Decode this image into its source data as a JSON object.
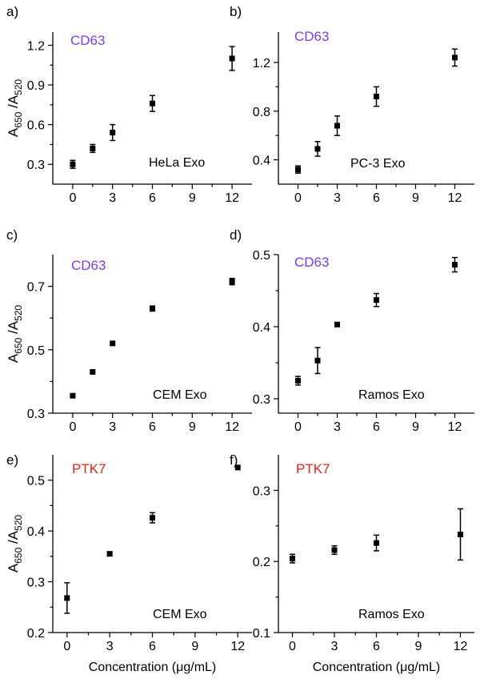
{
  "figure": {
    "ylabel_main": "A",
    "ylabel_sub1": "650",
    "ylabel_sep": " /A",
    "ylabel_sub2": "520",
    "xlabel": "Concentration (μg/mL)"
  },
  "chart_data": [
    {
      "panel": "a)",
      "type": "scatter",
      "marker": "CD63",
      "marker_color": "#7b3fe4",
      "sample": "HeLa Exo",
      "ylim": [
        0.15,
        1.3
      ],
      "xlim": [
        -1.5,
        13.5
      ],
      "xticks": [
        0,
        3,
        6,
        9,
        12
      ],
      "xtick_labels": [
        "0",
        "3",
        "6",
        "9",
        "12"
      ],
      "yticks": [
        0.3,
        0.6,
        0.9,
        1.2
      ],
      "ytick_labels": [
        "0.3",
        "0.6",
        "0.9",
        "1.2"
      ],
      "x": [
        0,
        1.5,
        3,
        6,
        12
      ],
      "y": [
        0.3,
        0.42,
        0.54,
        0.76,
        1.1
      ],
      "err": [
        0.03,
        0.03,
        0.06,
        0.06,
        0.09
      ],
      "show_ylabel": true,
      "show_xlabel": false
    },
    {
      "panel": "b)",
      "type": "scatter",
      "marker": "CD63",
      "marker_color": "#7b3fe4",
      "sample": "PC-3 Exo",
      "ylim": [
        0.2,
        1.45
      ],
      "xlim": [
        -1.5,
        13.5
      ],
      "xticks": [
        0,
        3,
        6,
        9,
        12
      ],
      "xtick_labels": [
        "0",
        "3",
        "6",
        "9",
        "12"
      ],
      "yticks": [
        0.4,
        0.8,
        1.2
      ],
      "ytick_labels": [
        "0.4",
        "0.8",
        "1.2"
      ],
      "x": [
        0,
        1.5,
        3,
        6,
        12
      ],
      "y": [
        0.32,
        0.49,
        0.68,
        0.92,
        1.24
      ],
      "err": [
        0.03,
        0.06,
        0.08,
        0.08,
        0.07
      ],
      "show_ylabel": false,
      "show_xlabel": false
    },
    {
      "panel": "c)",
      "type": "scatter",
      "marker": "CD63",
      "marker_color": "#7b3fe4",
      "sample": "CEM Exo",
      "ylim": [
        0.3,
        0.8
      ],
      "xlim": [
        -1.5,
        13.5
      ],
      "xticks": [
        0,
        3,
        6,
        9,
        12
      ],
      "xtick_labels": [
        "0",
        "3",
        "6",
        "9",
        "12"
      ],
      "yticks": [
        0.3,
        0.5,
        0.7
      ],
      "ytick_labels": [
        "0.3",
        "0.5",
        "0.7"
      ],
      "x": [
        0,
        1.5,
        3,
        6,
        12
      ],
      "y": [
        0.355,
        0.43,
        0.52,
        0.63,
        0.715
      ],
      "err": [
        0.003,
        0.004,
        0.004,
        0.008,
        0.01
      ],
      "show_ylabel": true,
      "show_xlabel": false
    },
    {
      "panel": "d)",
      "type": "scatter",
      "marker": "CD63",
      "marker_color": "#7b3fe4",
      "sample": "Ramos Exo",
      "ylim": [
        0.28,
        0.5
      ],
      "xlim": [
        -1.5,
        13.5
      ],
      "xticks": [
        0,
        3,
        6,
        9,
        12
      ],
      "xtick_labels": [
        "0",
        "3",
        "6",
        "9",
        "12"
      ],
      "yticks": [
        0.3,
        0.4,
        0.5
      ],
      "ytick_labels": [
        "0.3",
        "0.4",
        "0.5"
      ],
      "x": [
        0,
        1.5,
        3,
        6,
        12
      ],
      "y": [
        0.325,
        0.353,
        0.403,
        0.437,
        0.486
      ],
      "err": [
        0.006,
        0.018,
        0.002,
        0.009,
        0.01
      ],
      "show_ylabel": false,
      "show_xlabel": false
    },
    {
      "panel": "e)",
      "type": "scatter",
      "marker": "PTK7",
      "marker_color": "#e5231b",
      "sample": "CEM Exo",
      "ylim": [
        0.2,
        0.55
      ],
      "xlim": [
        -1,
        13
      ],
      "xticks": [
        0,
        3,
        6,
        9,
        12
      ],
      "xtick_labels": [
        "0",
        "3",
        "6",
        "9",
        "12"
      ],
      "yticks": [
        0.2,
        0.3,
        0.4,
        0.5
      ],
      "ytick_labels": [
        "0.2",
        "0.3",
        "0.4",
        "0.5"
      ],
      "x": [
        0,
        3,
        6,
        12
      ],
      "y": [
        0.268,
        0.355,
        0.426,
        0.525
      ],
      "err": [
        0.03,
        0.004,
        0.01,
        0.003
      ],
      "show_ylabel": true,
      "show_xlabel": true
    },
    {
      "panel": "f)",
      "type": "scatter",
      "marker": "PTK7",
      "marker_color": "#e5231b",
      "sample": "Ramos Exo",
      "ylim": [
        0.1,
        0.35
      ],
      "xlim": [
        -1,
        13
      ],
      "xticks": [
        0,
        3,
        6,
        9,
        12
      ],
      "xtick_labels": [
        "0",
        "3",
        "6",
        "9",
        "12"
      ],
      "yticks": [
        0.1,
        0.2,
        0.3
      ],
      "ytick_labels": [
        "0.1",
        "0.2",
        "0.3"
      ],
      "x": [
        0,
        3,
        6,
        12
      ],
      "y": [
        0.204,
        0.216,
        0.226,
        0.238
      ],
      "err": [
        0.006,
        0.006,
        0.011,
        0.036
      ],
      "show_ylabel": false,
      "show_xlabel": true
    }
  ]
}
